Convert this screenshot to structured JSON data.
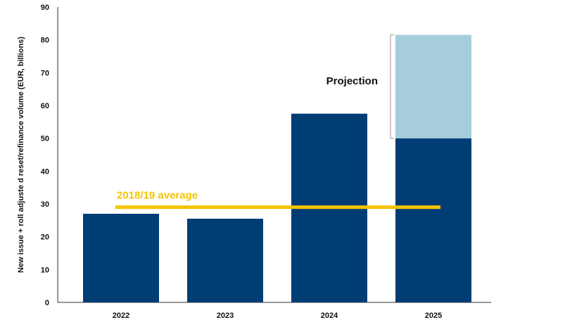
{
  "chart_data": {
    "type": "bar",
    "ylabel": "New issue + roll adjuste d reset/refinance volume (EUR, billions)",
    "xlabel": "",
    "ylim": [
      0,
      90
    ],
    "y_ticks": [
      "0",
      "10",
      "20",
      "30",
      "40",
      "50",
      "60",
      "70",
      "80",
      "90"
    ],
    "categories": [
      "2022",
      "2023",
      "2024",
      "2025"
    ],
    "series": [
      {
        "values": [
          27,
          25.5,
          57.5,
          50
        ]
      },
      {
        "values": [
          0,
          0,
          0,
          31.5
        ]
      }
    ],
    "reference_line": {
      "label": "2018/19 average",
      "value": 29
    },
    "annotation": {
      "label": "Projection",
      "range": [
        50,
        81.5
      ]
    },
    "colors": {
      "bar": "#003d74",
      "projection": "#a6cddc",
      "reference": "#f5c400",
      "axis": "#333333",
      "bracket": "#999999"
    },
    "grid": false
  }
}
